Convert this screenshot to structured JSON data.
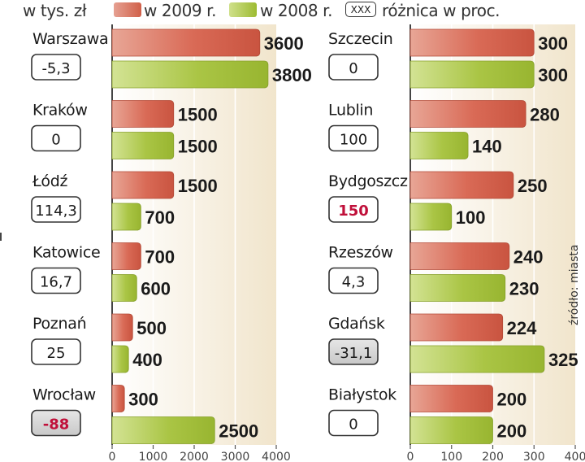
{
  "legend": {
    "unit": "w tys. zł",
    "series_2009": "w 2009 r.",
    "series_2008": "w 2008 r.",
    "diff_box": "XXX",
    "diff_label": "różnica w proc."
  },
  "source": "źródło: miasta",
  "colors": {
    "red": "#d96a56",
    "green": "#a9c442",
    "highlight_text": "#c0103a",
    "box_gray": "#d6d6d6"
  },
  "chart_data": [
    {
      "type": "bar",
      "orientation": "horizontal",
      "categories": [
        "Warszawa",
        "Kraków",
        "Łódź",
        "Katowice",
        "Poznań",
        "Wrocław"
      ],
      "series": [
        {
          "name": "w 2009 r.",
          "values": [
            3600,
            1500,
            1500,
            700,
            500,
            300
          ]
        },
        {
          "name": "w 2008 r.",
          "values": [
            3800,
            1500,
            700,
            600,
            400,
            2500
          ]
        }
      ],
      "diff": [
        "-5,3",
        "0",
        "114,3",
        "16,7",
        "25",
        "-88"
      ],
      "diff_style": [
        "normal",
        "normal",
        "normal",
        "normal",
        "normal",
        "highlight-gray"
      ],
      "xlim": [
        0,
        4000
      ],
      "xticks": [
        "0",
        "1000",
        "2000",
        "3000",
        "4000"
      ],
      "grid": true
    },
    {
      "type": "bar",
      "orientation": "horizontal",
      "categories": [
        "Szczecin",
        "Lublin",
        "Bydgoszcz",
        "Rzeszów",
        "Gdańsk",
        "Białystok"
      ],
      "series": [
        {
          "name": "w 2009 r.",
          "values": [
            300,
            280,
            250,
            240,
            224,
            200
          ]
        },
        {
          "name": "w 2008 r.",
          "values": [
            300,
            140,
            100,
            230,
            325,
            200
          ]
        }
      ],
      "diff": [
        "0",
        "100",
        "150",
        "4,3",
        "-31,1",
        "0"
      ],
      "diff_style": [
        "normal",
        "normal",
        "highlight",
        "normal",
        "gray",
        "normal"
      ],
      "xlim": [
        0,
        400
      ],
      "xticks": [
        "0",
        "100",
        "200",
        "300",
        "400"
      ],
      "grid": true
    }
  ]
}
